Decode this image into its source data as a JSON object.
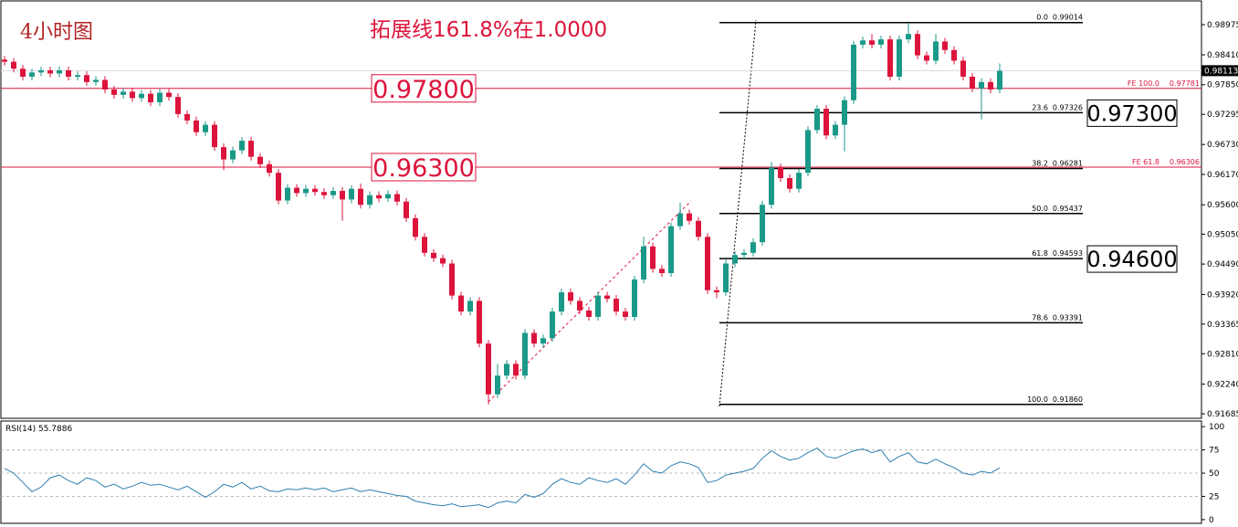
{
  "chart_data": [
    {
      "type": "candlestick",
      "title": "4小时图",
      "subtitle": "拓展线161.8%在1.0000",
      "up_color": "#1a9988",
      "down_color": "#dc143c",
      "ylim": [
        0.916,
        0.99437
      ],
      "yticks": [
        0.98975,
        {
          "value": 0.9841,
          "label": "0.98410"
        },
        {
          "value": 0.9785,
          "label": "0.97850"
        },
        0.97295,
        {
          "value": 0.9673,
          "label": "0.96730"
        },
        {
          "value": 0.9617,
          "label": "0.96170"
        },
        {
          "value": 0.956,
          "label": "0.95600"
        },
        {
          "value": 0.9505,
          "label": "0.95050"
        },
        {
          "value": 0.9449,
          "label": "0.94490"
        },
        {
          "value": 0.9392,
          "label": "0.93920"
        },
        0.93365,
        {
          "value": 0.9281,
          "label": "0.92810"
        },
        {
          "value": 0.9224,
          "label": "0.92240"
        },
        0.91685
      ],
      "last_price": 0.98113,
      "open": [
        0.9832,
        0.9828,
        0.9815,
        0.98,
        0.9808,
        0.9812,
        0.9806,
        0.9812,
        0.98,
        0.9803,
        0.979,
        0.9794,
        0.9776,
        0.9766,
        0.9772,
        0.976,
        0.9768,
        0.9752,
        0.977,
        0.9762,
        0.973,
        0.9718,
        0.9696,
        0.971,
        0.9668,
        0.9645,
        0.9662,
        0.968,
        0.965,
        0.9636,
        0.962,
        0.9568,
        0.9592,
        0.9582,
        0.959,
        0.9584,
        0.9578,
        0.9586,
        0.957,
        0.959,
        0.956,
        0.9578,
        0.9572,
        0.958,
        0.9566,
        0.9535,
        0.95,
        0.947,
        0.946,
        0.945,
        0.939,
        0.936,
        0.938,
        0.93,
        0.9205,
        0.924,
        0.9262,
        0.924,
        0.932,
        0.93,
        0.931,
        0.936,
        0.9396,
        0.938,
        0.9362,
        0.935,
        0.939,
        0.9384,
        0.936,
        0.935,
        0.942,
        0.9482,
        0.944,
        0.9432,
        0.952,
        0.9544,
        0.953,
        0.95,
        0.94,
        0.9396,
        0.945,
        0.9466,
        0.947,
        0.949,
        0.956,
        0.963,
        0.961,
        0.959,
        0.962,
        0.97,
        0.974,
        0.969,
        0.971,
        0.9756,
        0.986,
        0.9868,
        0.986,
        0.987,
        0.98,
        0.987,
        0.988,
        0.984,
        0.983,
        0.9866,
        0.985,
        0.983,
        0.98,
        0.9778,
        0.979,
        0.9776
      ],
      "high": [
        0.9839,
        0.9835,
        0.9822,
        0.9815,
        0.9819,
        0.9819,
        0.9819,
        0.9819,
        0.981,
        0.981,
        0.9801,
        0.9801,
        0.9783,
        0.9779,
        0.9779,
        0.9775,
        0.9775,
        0.9777,
        0.9777,
        0.9769,
        0.9737,
        0.9725,
        0.9717,
        0.9717,
        0.9675,
        0.9669,
        0.9687,
        0.9687,
        0.9657,
        0.9643,
        0.9627,
        0.9599,
        0.9599,
        0.9597,
        0.9597,
        0.9591,
        0.9593,
        0.9593,
        0.9597,
        0.96,
        0.9585,
        0.9585,
        0.9587,
        0.9587,
        0.9573,
        0.9542,
        0.9507,
        0.9477,
        0.9467,
        0.9457,
        0.9397,
        0.9387,
        0.9387,
        0.9307,
        0.9262,
        0.9269,
        0.9269,
        0.9327,
        0.9327,
        0.9317,
        0.9367,
        0.9403,
        0.9403,
        0.9387,
        0.9369,
        0.9397,
        0.9397,
        0.9391,
        0.9367,
        0.9427,
        0.95,
        0.9489,
        0.9447,
        0.9527,
        0.9564,
        0.9551,
        0.9537,
        0.9507,
        0.9407,
        0.9457,
        0.9473,
        0.9477,
        0.9497,
        0.9567,
        0.964,
        0.9637,
        0.9617,
        0.9627,
        0.9707,
        0.9747,
        0.9747,
        0.9717,
        0.9763,
        0.9867,
        0.9875,
        0.988,
        0.9877,
        0.9877,
        0.9877,
        0.9901,
        0.9887,
        0.9847,
        0.988,
        0.9873,
        0.9857,
        0.9837,
        0.9807,
        0.9797,
        0.9797,
        0.9825
      ],
      "low": [
        0.9821,
        0.9808,
        0.9793,
        0.9793,
        0.9801,
        0.9799,
        0.9799,
        0.9793,
        0.9793,
        0.9783,
        0.9783,
        0.9769,
        0.9759,
        0.9759,
        0.9753,
        0.9753,
        0.9745,
        0.9745,
        0.9755,
        0.9723,
        0.9711,
        0.9689,
        0.9689,
        0.9661,
        0.9625,
        0.9638,
        0.9655,
        0.9643,
        0.9629,
        0.9613,
        0.9561,
        0.9561,
        0.9575,
        0.9575,
        0.9577,
        0.9571,
        0.9571,
        0.953,
        0.9563,
        0.9553,
        0.9553,
        0.9565,
        0.9565,
        0.9559,
        0.9528,
        0.9493,
        0.9463,
        0.9453,
        0.9443,
        0.9383,
        0.9353,
        0.9353,
        0.9293,
        0.9186,
        0.9198,
        0.9233,
        0.9233,
        0.9233,
        0.9293,
        0.9293,
        0.9303,
        0.9353,
        0.9373,
        0.9355,
        0.9343,
        0.9343,
        0.9377,
        0.9353,
        0.9343,
        0.9343,
        0.9413,
        0.9433,
        0.9425,
        0.9425,
        0.9513,
        0.9523,
        0.9493,
        0.9393,
        0.9385,
        0.9389,
        0.9443,
        0.9459,
        0.9463,
        0.9483,
        0.9553,
        0.9603,
        0.9583,
        0.9583,
        0.9613,
        0.9693,
        0.9683,
        0.9683,
        0.966,
        0.9749,
        0.9853,
        0.9853,
        0.9853,
        0.9793,
        0.9793,
        0.9863,
        0.9833,
        0.9823,
        0.9823,
        0.9843,
        0.9823,
        0.9793,
        0.9771,
        0.972,
        0.9769,
        0.9769
      ],
      "close": [
        0.9828,
        0.9815,
        0.98,
        0.9808,
        0.9812,
        0.9806,
        0.9812,
        0.98,
        0.9803,
        0.979,
        0.9794,
        0.9776,
        0.9766,
        0.9772,
        0.976,
        0.9768,
        0.9752,
        0.977,
        0.9762,
        0.973,
        0.9718,
        0.9696,
        0.971,
        0.9668,
        0.9645,
        0.9662,
        0.968,
        0.965,
        0.9636,
        0.962,
        0.9568,
        0.9592,
        0.9582,
        0.959,
        0.9584,
        0.9578,
        0.9586,
        0.957,
        0.959,
        0.956,
        0.9578,
        0.9572,
        0.958,
        0.9566,
        0.9535,
        0.95,
        0.947,
        0.946,
        0.945,
        0.939,
        0.936,
        0.938,
        0.93,
        0.9205,
        0.924,
        0.9262,
        0.924,
        0.932,
        0.93,
        0.931,
        0.936,
        0.9396,
        0.938,
        0.9362,
        0.935,
        0.939,
        0.9384,
        0.936,
        0.935,
        0.942,
        0.9482,
        0.944,
        0.9432,
        0.952,
        0.9544,
        0.953,
        0.95,
        0.94,
        0.9396,
        0.945,
        0.9466,
        0.947,
        0.949,
        0.956,
        0.963,
        0.961,
        0.959,
        0.962,
        0.97,
        0.974,
        0.969,
        0.971,
        0.9756,
        0.986,
        0.9868,
        0.986,
        0.987,
        0.98,
        0.987,
        0.988,
        0.984,
        0.983,
        0.9866,
        0.985,
        0.983,
        0.98,
        0.9778,
        0.979,
        0.9776,
        0.9811
      ],
      "fib_levels": [
        {
          "ratio": "0.0",
          "value": 0.99014,
          "label": "0.99014"
        },
        {
          "ratio": "23.6",
          "value": 0.97326,
          "label": "0.97326",
          "box": "0.97300"
        },
        {
          "ratio": "38.2",
          "value": 0.96281,
          "label": "0.96281"
        },
        {
          "ratio": "50.0",
          "value": 0.95437,
          "label": "0.95437"
        },
        {
          "ratio": "61.8",
          "value": 0.94593,
          "label": "0.94593",
          "box": "0.94600"
        },
        {
          "ratio": "78.6",
          "value": 0.93391,
          "label": "0.93391"
        },
        {
          "ratio": "100.0",
          "value": 0.9186,
          "label": "0.91860"
        }
      ],
      "fe_levels": [
        {
          "text": "FE 100.0",
          "value": 0.97781,
          "label": "0.97781",
          "box": "0.97800"
        },
        {
          "text": "FE 61.8",
          "value": 0.96306,
          "label": "0.96306",
          "box": "0.96300"
        }
      ],
      "fe_color": "#dc143c"
    },
    {
      "type": "line",
      "title": "RSI(14) 55.7886",
      "color": "#2f7fb0",
      "ylim": [
        -4,
        106
      ],
      "yticks": [
        100,
        75,
        50,
        25,
        0
      ],
      "levels": [
        75,
        50,
        25
      ],
      "values": [
        55,
        50,
        40,
        30,
        35,
        45,
        48,
        42,
        38,
        45,
        42,
        35,
        38,
        33,
        36,
        40,
        37,
        38,
        35,
        32,
        36,
        30,
        24,
        30,
        38,
        35,
        40,
        33,
        36,
        31,
        30,
        33,
        32,
        34,
        32,
        34,
        30,
        32,
        34,
        30,
        32,
        30,
        28,
        26,
        25,
        20,
        18,
        16,
        15,
        17,
        14,
        15,
        16,
        13,
        18,
        20,
        18,
        27,
        24,
        28,
        38,
        44,
        40,
        38,
        45,
        42,
        40,
        44,
        38,
        48,
        60,
        52,
        50,
        58,
        62,
        60,
        56,
        40,
        42,
        48,
        50,
        52,
        55,
        66,
        74,
        68,
        64,
        66,
        72,
        77,
        68,
        66,
        70,
        74,
        76,
        72,
        75,
        62,
        68,
        72,
        62,
        60,
        65,
        60,
        56,
        50,
        48,
        52,
        50,
        55.7886
      ]
    }
  ]
}
